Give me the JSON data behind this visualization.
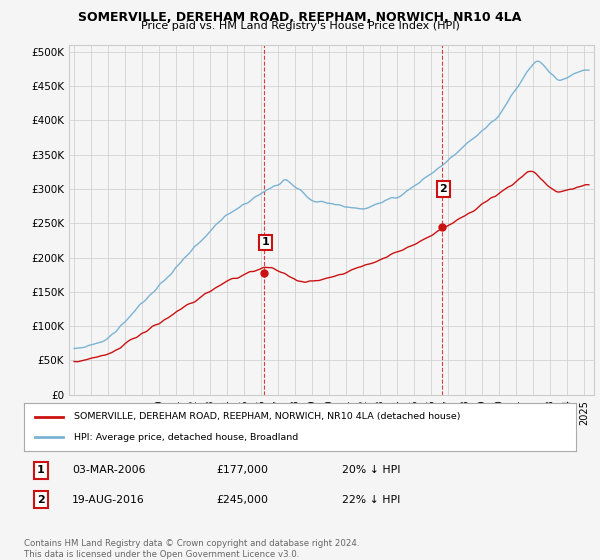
{
  "title": "SOMERVILLE, DEREHAM ROAD, REEPHAM, NORWICH, NR10 4LA",
  "subtitle": "Price paid vs. HM Land Registry's House Price Index (HPI)",
  "ylabel_ticks": [
    "£0",
    "£50K",
    "£100K",
    "£150K",
    "£200K",
    "£250K",
    "£300K",
    "£350K",
    "£400K",
    "£450K",
    "£500K"
  ],
  "ytick_values": [
    0,
    50000,
    100000,
    150000,
    200000,
    250000,
    300000,
    350000,
    400000,
    450000,
    500000
  ],
  "ylim": [
    0,
    510000
  ],
  "xlim_start": 1994.7,
  "xlim_end": 2025.6,
  "hpi_color": "#7ab3d4",
  "price_color": "#cc1111",
  "point1_x": 2006.17,
  "point1_y": 177000,
  "point2_x": 2016.63,
  "point2_y": 245000,
  "legend_label_red": "SOMERVILLE, DEREHAM ROAD, REEPHAM, NORWICH, NR10 4LA (detached house)",
  "legend_label_blue": "HPI: Average price, detached house, Broadland",
  "annotation1_date": "03-MAR-2006",
  "annotation1_price": "£177,000",
  "annotation1_pct": "20% ↓ HPI",
  "annotation2_date": "19-AUG-2016",
  "annotation2_price": "£245,000",
  "annotation2_pct": "22% ↓ HPI",
  "footer": "Contains HM Land Registry data © Crown copyright and database right 2024.\nThis data is licensed under the Open Government Licence v3.0.",
  "background_color": "#f5f5f5",
  "grid_color": "#cccccc"
}
